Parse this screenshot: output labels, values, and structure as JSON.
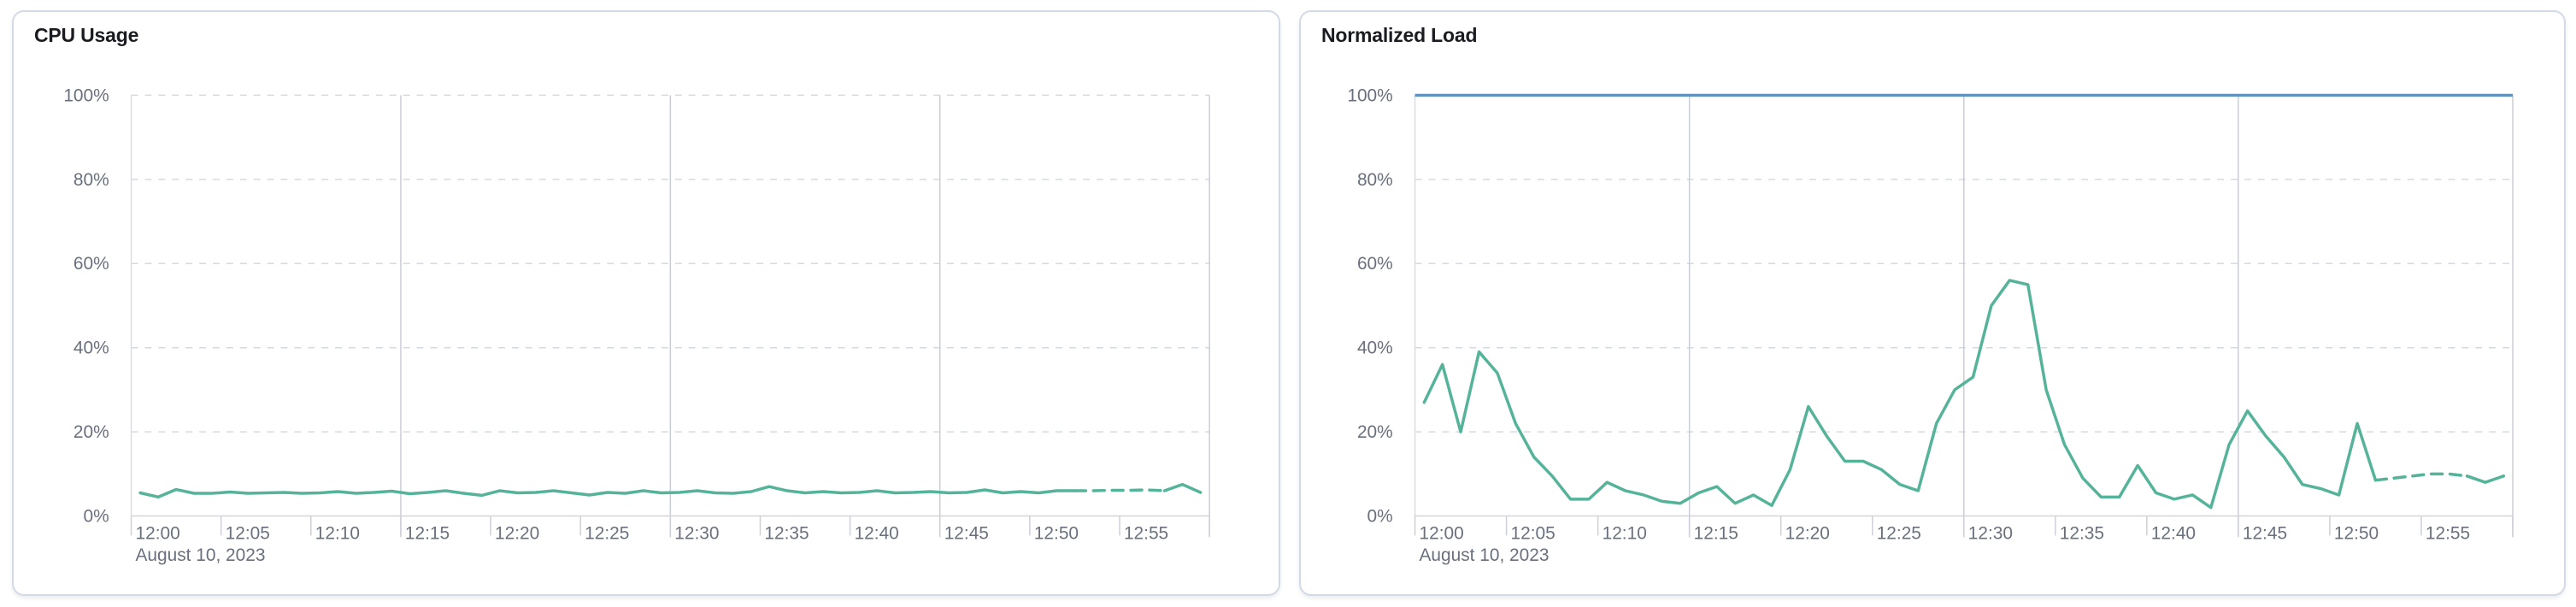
{
  "theme": {
    "panel_bg": "#ffffff",
    "panel_border": "#d3dae6",
    "title_color": "#1a1c21",
    "axis_label_color": "#69707d",
    "gridline_dashed_color": "#d5d9e2",
    "gridline_major_color": "#c9cdd5",
    "axis_line_color": "#d3d6dd",
    "tick_color": "#ccd0d8",
    "series_green": "#54b399",
    "series_blue": "#6092c0"
  },
  "chart_data": [
    {
      "type": "line",
      "title": "CPU Usage",
      "x_axis": {
        "tick_labels": [
          "12:00",
          "12:05",
          "12:10",
          "12:15",
          "12:20",
          "12:25",
          "12:30",
          "12:35",
          "12:40",
          "12:45",
          "12:50",
          "12:55"
        ],
        "tick_interval_min": 5,
        "domain_minutes": [
          0,
          60
        ],
        "date_label": "August 10, 2023",
        "major_gridline_minutes": [
          15,
          30,
          45,
          60
        ]
      },
      "y_axis": {
        "tick_labels": [
          "0%",
          "20%",
          "40%",
          "60%",
          "80%",
          "100%"
        ],
        "min": 0,
        "max": 100,
        "gridline_pct": [
          20,
          40,
          60,
          80,
          100
        ]
      },
      "series": [
        {
          "name": "cpu-usage",
          "color": "#54b399",
          "width": 3.5,
          "start_offset_min": 0.5,
          "dash_from_index": 52,
          "dash_to_index": 57,
          "values_pct": [
            5.5,
            4.5,
            6.3,
            5.4,
            5.4,
            5.7,
            5.4,
            5.5,
            5.6,
            5.4,
            5.5,
            5.8,
            5.4,
            5.6,
            5.9,
            5.3,
            5.6,
            6.0,
            5.4,
            4.9,
            6.0,
            5.5,
            5.6,
            6.0,
            5.5,
            5.0,
            5.6,
            5.4,
            6.0,
            5.5,
            5.6,
            6.0,
            5.5,
            5.4,
            5.8,
            7.0,
            6.0,
            5.5,
            5.8,
            5.5,
            5.6,
            6.0,
            5.5,
            5.6,
            5.8,
            5.5,
            5.6,
            6.2,
            5.5,
            5.8,
            5.5,
            6.0,
            6.0,
            6.0,
            6.1,
            6.1,
            6.2,
            6.0,
            7.5,
            5.6
          ]
        }
      ]
    },
    {
      "type": "line",
      "title": "Normalized Load",
      "x_axis": {
        "tick_labels": [
          "12:00",
          "12:05",
          "12:10",
          "12:15",
          "12:20",
          "12:25",
          "12:30",
          "12:35",
          "12:40",
          "12:45",
          "12:50",
          "12:55"
        ],
        "tick_interval_min": 5,
        "domain_minutes": [
          0,
          60
        ],
        "date_label": "August 10, 2023",
        "major_gridline_minutes": [
          15,
          30,
          45,
          60
        ]
      },
      "y_axis": {
        "tick_labels": [
          "0%",
          "20%",
          "40%",
          "60%",
          "80%",
          "100%"
        ],
        "min": 0,
        "max": 100,
        "gridline_pct": [
          20,
          40,
          60,
          80,
          100
        ]
      },
      "series": [
        {
          "name": "normalized-load",
          "color": "#54b399",
          "width": 3.5,
          "start_offset_min": 0.5,
          "dash_from_index": 52,
          "dash_to_index": 57,
          "values_pct": [
            27,
            36,
            20,
            39,
            34,
            22,
            14,
            9.5,
            4,
            4,
            8,
            6,
            5,
            3.5,
            3,
            5.5,
            7,
            3,
            5,
            2.5,
            11,
            26,
            19,
            13,
            13,
            11,
            7.5,
            6,
            22,
            30,
            33,
            50,
            56,
            55,
            30,
            17,
            9,
            4.5,
            4.5,
            12,
            5.5,
            4,
            5,
            2,
            17,
            25,
            19,
            14,
            7.5,
            6.5,
            5,
            22,
            8.5,
            9,
            9.5,
            10,
            10,
            9.5,
            8,
            9.5
          ]
        },
        {
          "name": "load-limit",
          "color": "#6092c0",
          "width": 3.5,
          "constant_pct": 100
        }
      ]
    }
  ]
}
